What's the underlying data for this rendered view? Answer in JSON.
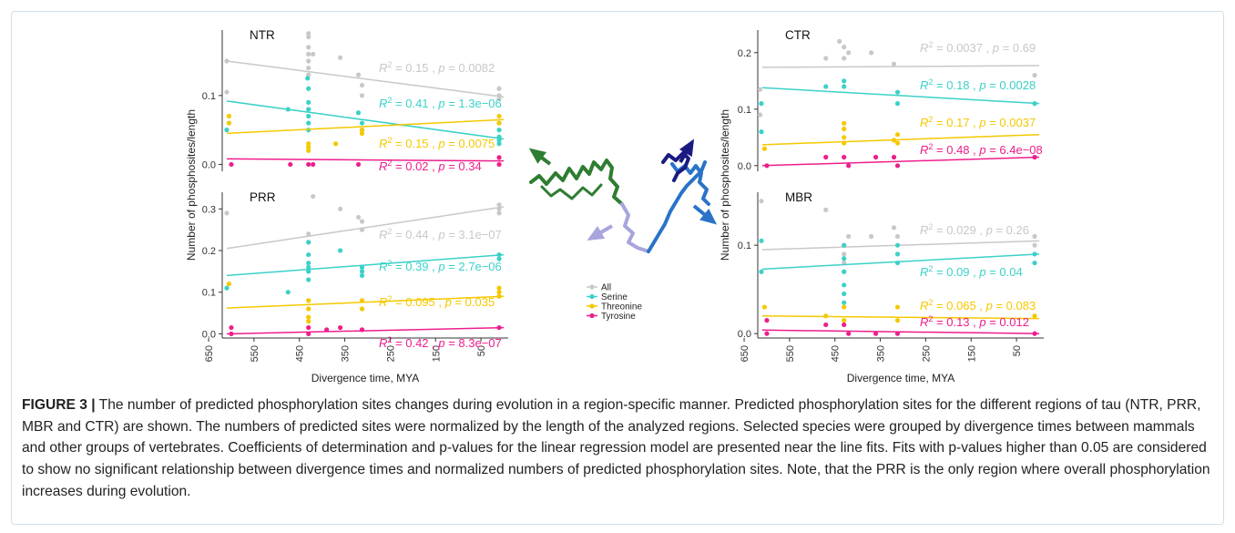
{
  "chart_data": [
    {
      "type": "scatter",
      "panel": "NTR",
      "ylim": [
        -0.01,
        0.195
      ],
      "yticks": [
        0.0,
        0.1
      ],
      "ytick_labels": [
        "0.0",
        "0.1"
      ],
      "xlim": [
        620,
        -10
      ],
      "series": [
        {
          "name": "All",
          "color": "#c8c8c8",
          "fit": [
            0.15,
            0.098
          ],
          "points": [
            [
              610,
              0.15
            ],
            [
              610,
              0.105
            ],
            [
              430,
              0.19
            ],
            [
              430,
              0.185
            ],
            [
              430,
              0.17
            ],
            [
              430,
              0.16
            ],
            [
              430,
              0.15
            ],
            [
              430,
              0.14
            ],
            [
              430,
              0.13
            ],
            [
              420,
              0.16
            ],
            [
              360,
              0.155
            ],
            [
              320,
              0.13
            ],
            [
              312,
              0.115
            ],
            [
              312,
              0.1
            ],
            [
              10,
              0.11
            ],
            [
              10,
              0.1
            ],
            [
              10,
              0.095
            ]
          ],
          "annotation": {
            "r2": "0.15",
            "p": "0.0082"
          }
        },
        {
          "name": "Serine",
          "color": "#3bd1c8",
          "fit": [
            0.092,
            0.037
          ],
          "points": [
            [
              610,
              0.05
            ],
            [
              475,
              0.08
            ],
            [
              432,
              0.125
            ],
            [
              430,
              0.11
            ],
            [
              430,
              0.09
            ],
            [
              430,
              0.08
            ],
            [
              430,
              0.07
            ],
            [
              430,
              0.06
            ],
            [
              430,
              0.05
            ],
            [
              320,
              0.075
            ],
            [
              312,
              0.06
            ],
            [
              312,
              0.05
            ],
            [
              10,
              0.06
            ],
            [
              10,
              0.05
            ],
            [
              10,
              0.04
            ],
            [
              10,
              0.035
            ],
            [
              10,
              0.03
            ]
          ],
          "annotation": {
            "r2": "0.41",
            "p": "1.3e−06"
          }
        },
        {
          "name": "Threonine",
          "color": "#f5c800",
          "fit": [
            0.045,
            0.065
          ],
          "points": [
            [
              605,
              0.07
            ],
            [
              605,
              0.06
            ],
            [
              430,
              0.03
            ],
            [
              430,
              0.025
            ],
            [
              430,
              0.02
            ],
            [
              370,
              0.03
            ],
            [
              312,
              0.05
            ],
            [
              312,
              0.045
            ],
            [
              10,
              0.07
            ],
            [
              10,
              0.06
            ]
          ],
          "annotation": {
            "r2": "0.15",
            "p": "0.0075"
          }
        },
        {
          "name": "Tyrosine",
          "color": "#ee1e8c",
          "fit": [
            0.008,
            0.005
          ],
          "points": [
            [
              600,
              0.0
            ],
            [
              470,
              0.0
            ],
            [
              430,
              0.0
            ],
            [
              420,
              0.0
            ],
            [
              320,
              0.0
            ],
            [
              10,
              0.0
            ],
            [
              10,
              0.01
            ]
          ],
          "annotation": {
            "r2": "0.02",
            "p": "0.34"
          }
        }
      ]
    },
    {
      "type": "scatter",
      "panel": "PRR",
      "ylim": [
        -0.01,
        0.34
      ],
      "yticks": [
        0.0,
        0.1,
        0.2,
        0.3
      ],
      "ytick_labels": [
        "0.0",
        "0.1",
        "0.2",
        "0.3"
      ],
      "xlim": [
        620,
        -10
      ],
      "series": [
        {
          "name": "All",
          "color": "#c8c8c8",
          "fit": [
            0.205,
            0.305
          ],
          "points": [
            [
              610,
              0.29
            ],
            [
              430,
              0.24
            ],
            [
              430,
              0.22
            ],
            [
              420,
              0.33
            ],
            [
              360,
              0.3
            ],
            [
              320,
              0.28
            ],
            [
              312,
              0.27
            ],
            [
              312,
              0.25
            ],
            [
              10,
              0.31
            ],
            [
              10,
              0.3
            ],
            [
              10,
              0.29
            ]
          ],
          "annotation": {
            "r2": "0.44",
            "p": "3.1e−07"
          }
        },
        {
          "name": "Serine",
          "color": "#3bd1c8",
          "fit": [
            0.14,
            0.19
          ],
          "points": [
            [
              610,
              0.11
            ],
            [
              475,
              0.1
            ],
            [
              430,
              0.22
            ],
            [
              430,
              0.19
            ],
            [
              430,
              0.17
            ],
            [
              430,
              0.16
            ],
            [
              430,
              0.15
            ],
            [
              430,
              0.13
            ],
            [
              360,
              0.2
            ],
            [
              312,
              0.16
            ],
            [
              312,
              0.15
            ],
            [
              312,
              0.14
            ],
            [
              10,
              0.19
            ],
            [
              10,
              0.18
            ]
          ],
          "annotation": {
            "r2": "0.39",
            "p": "2.7e−06"
          }
        },
        {
          "name": "Threonine",
          "color": "#f5c800",
          "fit": [
            0.062,
            0.09
          ],
          "points": [
            [
              605,
              0.12
            ],
            [
              430,
              0.08
            ],
            [
              430,
              0.06
            ],
            [
              430,
              0.04
            ],
            [
              430,
              0.03
            ],
            [
              312,
              0.08
            ],
            [
              312,
              0.06
            ],
            [
              10,
              0.11
            ],
            [
              10,
              0.1
            ],
            [
              10,
              0.09
            ]
          ],
          "annotation": {
            "r2": "0.095",
            "p": "0.035"
          }
        },
        {
          "name": "Tyrosine",
          "color": "#ee1e8c",
          "fit": [
            0.0,
            0.015
          ],
          "points": [
            [
              600,
              0.0
            ],
            [
              600,
              0.015
            ],
            [
              430,
              0.0
            ],
            [
              430,
              0.015
            ],
            [
              390,
              0.01
            ],
            [
              360,
              0.015
            ],
            [
              312,
              0.01
            ],
            [
              10,
              0.015
            ]
          ],
          "annotation": {
            "r2": "0.42",
            "p": "8.3e−07"
          }
        }
      ]
    },
    {
      "type": "scatter",
      "panel": "CTR",
      "ylim": [
        -0.01,
        0.24
      ],
      "yticks": [
        0.0,
        0.1,
        0.2
      ],
      "ytick_labels": [
        "0.0",
        "0.1",
        "0.2"
      ],
      "xlim": [
        620,
        -10
      ],
      "series": [
        {
          "name": "All",
          "color": "#c8c8c8",
          "fit": [
            0.174,
            0.177
          ],
          "points": [
            [
              615,
              0.135
            ],
            [
              615,
              0.09
            ],
            [
              470,
              0.19
            ],
            [
              440,
              0.22
            ],
            [
              430,
              0.21
            ],
            [
              430,
              0.19
            ],
            [
              420,
              0.2
            ],
            [
              370,
              0.2
            ],
            [
              320,
              0.18
            ],
            [
              10,
              0.16
            ]
          ],
          "annotation": {
            "r2": "0.0037",
            "p": "0.69"
          }
        },
        {
          "name": "Serine",
          "color": "#3bd1c8",
          "fit": [
            0.138,
            0.11
          ],
          "points": [
            [
              612,
              0.11
            ],
            [
              612,
              0.06
            ],
            [
              470,
              0.14
            ],
            [
              430,
              0.15
            ],
            [
              430,
              0.14
            ],
            [
              312,
              0.13
            ],
            [
              312,
              0.11
            ],
            [
              10,
              0.11
            ]
          ],
          "annotation": {
            "r2": "0.18",
            "p": "0.0028"
          }
        },
        {
          "name": "Threonine",
          "color": "#f5c800",
          "fit": [
            0.037,
            0.055
          ],
          "points": [
            [
              605,
              0.03
            ],
            [
              430,
              0.075
            ],
            [
              430,
              0.065
            ],
            [
              430,
              0.05
            ],
            [
              430,
              0.04
            ],
            [
              320,
              0.045
            ],
            [
              312,
              0.055
            ],
            [
              312,
              0.04
            ]
          ],
          "annotation": {
            "r2": "0.17",
            "p": "0.0037"
          }
        },
        {
          "name": "Tyrosine",
          "color": "#ee1e8c",
          "fit": [
            0.0,
            0.015
          ],
          "points": [
            [
              600,
              0.0
            ],
            [
              470,
              0.015
            ],
            [
              430,
              0.015
            ],
            [
              420,
              0.0
            ],
            [
              360,
              0.015
            ],
            [
              320,
              0.015
            ],
            [
              312,
              0.0
            ],
            [
              10,
              0.015
            ]
          ],
          "annotation": {
            "r2": "0.48",
            "p": "6.4e−08"
          }
        }
      ]
    },
    {
      "type": "scatter",
      "panel": "MBR",
      "ylim": [
        -0.005,
        0.16
      ],
      "yticks": [
        0.0,
        0.1
      ],
      "ytick_labels": [
        "0.0",
        "0.1"
      ],
      "xlim": [
        620,
        -10
      ],
      "series": [
        {
          "name": "All",
          "color": "#c8c8c8",
          "fit": [
            0.095,
            0.105
          ],
          "points": [
            [
              612,
              0.15
            ],
            [
              470,
              0.14
            ],
            [
              430,
              0.1
            ],
            [
              430,
              0.09
            ],
            [
              430,
              0.08
            ],
            [
              430,
              0.07
            ],
            [
              420,
              0.11
            ],
            [
              370,
              0.11
            ],
            [
              320,
              0.12
            ],
            [
              312,
              0.11
            ],
            [
              10,
              0.11
            ],
            [
              10,
              0.1
            ]
          ],
          "annotation": {
            "r2": "0.029",
            "p": "0.26"
          }
        },
        {
          "name": "Serine",
          "color": "#3bd1c8",
          "fit": [
            0.073,
            0.09
          ],
          "points": [
            [
              612,
              0.105
            ],
            [
              612,
              0.07
            ],
            [
              430,
              0.1
            ],
            [
              430,
              0.085
            ],
            [
              430,
              0.07
            ],
            [
              430,
              0.055
            ],
            [
              430,
              0.045
            ],
            [
              430,
              0.035
            ],
            [
              312,
              0.1
            ],
            [
              312,
              0.09
            ],
            [
              312,
              0.08
            ],
            [
              10,
              0.09
            ],
            [
              10,
              0.08
            ]
          ],
          "annotation": {
            "r2": "0.09",
            "p": "0.04"
          }
        },
        {
          "name": "Threonine",
          "color": "#f5c800",
          "fit": [
            0.02,
            0.017
          ],
          "points": [
            [
              605,
              0.03
            ],
            [
              470,
              0.02
            ],
            [
              430,
              0.03
            ],
            [
              430,
              0.015
            ],
            [
              312,
              0.03
            ],
            [
              312,
              0.015
            ],
            [
              10,
              0.02
            ]
          ],
          "annotation": {
            "r2": "0.065",
            "p": "0.083"
          }
        },
        {
          "name": "Tyrosine",
          "color": "#ee1e8c",
          "fit": [
            0.004,
            0.0
          ],
          "points": [
            [
              600,
              0.0
            ],
            [
              600,
              0.015
            ],
            [
              470,
              0.01
            ],
            [
              430,
              0.01
            ],
            [
              420,
              0.0
            ],
            [
              360,
              0.0
            ],
            [
              312,
              0.0
            ],
            [
              10,
              0.0
            ]
          ],
          "annotation": {
            "r2": "0.13",
            "p": "0.012"
          }
        }
      ]
    }
  ],
  "axes": {
    "ylabel": "Number of phosphosites/length",
    "xlabel": "Divergence time, MYA",
    "xticks": [
      650,
      550,
      450,
      350,
      250,
      150,
      50
    ],
    "xtick_labels": [
      "650",
      "550",
      "450",
      "350",
      "250",
      "150",
      "50"
    ]
  },
  "legend": {
    "items": [
      {
        "label": "All",
        "color": "#c8c8c8"
      },
      {
        "label": "Serine",
        "color": "#3bd1c8"
      },
      {
        "label": "Threonine",
        "color": "#f5c800"
      },
      {
        "label": "Tyrosine",
        "color": "#ee1e8c"
      }
    ]
  },
  "protein_colors": {
    "green": "#2e7d32",
    "lavender": "#a8a4dc",
    "blue": "#2a73c7",
    "navy": "#1a1a80"
  },
  "caption": {
    "lead": "FIGURE 3 |",
    "text": " The number of predicted phosphorylation sites changes during evolution in a region-specific manner. Predicted phosphorylation sites for the different regions of tau (NTR, PRR, MBR and CTR) are shown. The numbers of predicted sites were normalized by the length of the analyzed regions. Selected species were grouped by divergence times between mammals and other groups of vertebrates. Coefficients of determination and p-values for the linear regression model are presented near the line fits. Fits with p-values higher than 0.05 are considered to show no significant relationship between divergence times and normalized numbers of predicted phosphorylation sites. Note, that the PRR is the only region where overall phosphorylation increases during evolution."
  }
}
